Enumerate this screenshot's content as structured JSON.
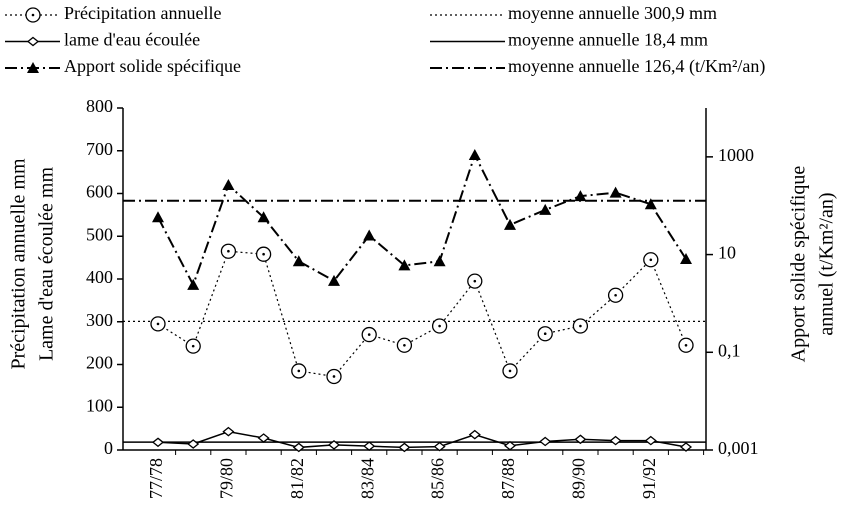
{
  "chart_data": {
    "type": "line",
    "categories": [
      "77/78",
      null,
      "79/80",
      null,
      "81/82",
      null,
      "83/84",
      null,
      "85/86",
      null,
      "87/88",
      null,
      "89/90",
      null,
      "91/92",
      null
    ],
    "series": [
      {
        "name": "Précipitation annuelle",
        "color": "#000000",
        "style": "dotted",
        "marker": "circle",
        "values": [
          295,
          243,
          465,
          458,
          185,
          172,
          270,
          245,
          290,
          395,
          185,
          272,
          290,
          362,
          445,
          245
        ]
      },
      {
        "name": "lame d'eau écoulée",
        "color": "#000000",
        "style": "solid",
        "marker": "diamond",
        "values": [
          18,
          14,
          43,
          28,
          6,
          12,
          9,
          6,
          8,
          36,
          10,
          20,
          25,
          22,
          22,
          7
        ]
      },
      {
        "name": "Apport solide spécifique",
        "color": "#000000",
        "style": "dashdot",
        "marker": "triangle",
        "axis": "y2",
        "values": [
          58,
          2.4,
          266,
          58,
          7.3,
          2.9,
          24.5,
          6,
          7.3,
          1094,
          40.6,
          82,
          157,
          185,
          107,
          8.1
        ]
      }
    ],
    "reference_lines": [
      {
        "name": "moyenne annuelle 300,9 mm",
        "value": 300.9,
        "style": "dotted"
      },
      {
        "name": "moyenne annuelle 18,4 mm",
        "value": 18.4,
        "style": "solid"
      },
      {
        "name": "moyenne annuelle 126,4 (t/Km²/an)",
        "value": 126.4,
        "style": "dashdot",
        "axis": "y2"
      }
    ],
    "y_label": [
      "Précipitation annuelle mm",
      "Lame d'eau écoulée  mm"
    ],
    "y2_label": [
      "Apport solide spécifique",
      "annuel  (t/Km²/an)"
    ],
    "ylim": [
      0,
      800
    ],
    "yticks": [
      0,
      100,
      200,
      300,
      400,
      500,
      600,
      700,
      800
    ],
    "y2_log": true,
    "y2lim": [
      0.001,
      10000
    ],
    "y2ticks": [
      {
        "value": 0.001,
        "label": "0,001"
      },
      {
        "value": 0.1,
        "label": "0,1"
      },
      10,
      1000
    ]
  }
}
